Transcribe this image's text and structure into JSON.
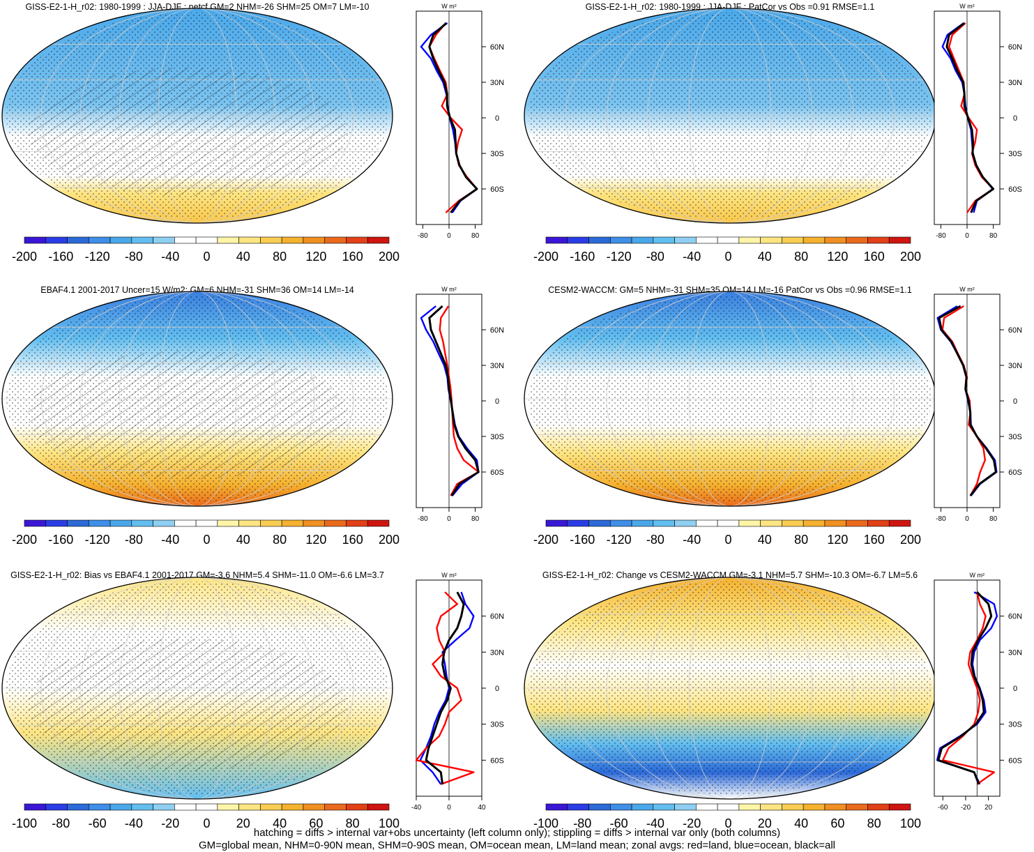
{
  "chart_data": [
    {
      "type": "heatmap",
      "title": "GISS-E2-1-H_r02: 1980-1999 : JJA-DJF : netcf GM=2 NHM=-26 SHM=25 OM=7 LM=-10",
      "colorbar_ticks": [
        "-200",
        "-160",
        "-120",
        "-80",
        "-40",
        "0",
        "40",
        "80",
        "120",
        "160",
        "200"
      ],
      "colorbar_range": [
        -200,
        200
      ],
      "hatching": true,
      "stippling": true,
      "zonal_units": "W m²",
      "zonal_xticks": [
        "-80",
        "0",
        "80"
      ],
      "zonal_xlim": [
        -100,
        100
      ],
      "zonal_lat_ticks": [
        "60N",
        "30N",
        "0",
        "30S",
        "60S"
      ],
      "zonal": {
        "lat": [
          80,
          70,
          60,
          50,
          40,
          30,
          20,
          10,
          0,
          -10,
          -20,
          -30,
          -40,
          -50,
          -60,
          -70,
          -80
        ],
        "land": [
          -10,
          -40,
          -60,
          -45,
          -28,
          -10,
          -5,
          -22,
          5,
          40,
          28,
          22,
          30,
          55,
          85,
          30,
          -10
        ],
        "ocean": [
          -5,
          -55,
          -85,
          -55,
          -38,
          -18,
          -8,
          -4,
          2,
          12,
          18,
          22,
          32,
          52,
          85,
          35,
          10
        ],
        "all": [
          -8,
          -48,
          -60,
          -48,
          -32,
          -14,
          -6,
          -6,
          3,
          18,
          20,
          22,
          32,
          52,
          85,
          33,
          5
        ]
      },
      "colors": [
        "#3a17d6",
        "#2a3de5",
        "#2c6ad8",
        "#3f8ee8",
        "#4aa8ea",
        "#63bef0",
        "#8ecff2",
        "#ffffff",
        "#ffffff",
        "#fff5a8",
        "#fde583",
        "#f9cd52",
        "#f5b12f",
        "#f08f22",
        "#ea6a1d",
        "#e24017",
        "#cf1510"
      ]
    },
    {
      "type": "heatmap",
      "title": "GISS-E2-1-H_r02: 1980-1999 : JJA-DJF : PatCor vs Obs =0.91 RMSE=1.1",
      "colorbar_ticks": [
        "-200",
        "-160",
        "-120",
        "-80",
        "-40",
        "0",
        "40",
        "80",
        "120",
        "160",
        "200"
      ],
      "colorbar_range": [
        -200,
        200
      ],
      "hatching": false,
      "stippling": true,
      "zonal_units": "W m²",
      "zonal_xticks": [
        "-80",
        "0",
        "80"
      ],
      "zonal_xlim": [
        -100,
        100
      ],
      "zonal_lat_ticks": [
        "60N",
        "30N",
        "0",
        "30S",
        "60S"
      ],
      "zonal": {
        "lat": [
          80,
          70,
          60,
          50,
          40,
          30,
          20,
          10,
          0,
          -10,
          -20,
          -30,
          -40,
          -50,
          -60,
          -70,
          -80
        ],
        "land": [
          -5,
          -45,
          -55,
          -40,
          -25,
          -10,
          -8,
          -18,
          5,
          30,
          25,
          15,
          25,
          45,
          80,
          25,
          0
        ],
        "ocean": [
          -10,
          -60,
          -75,
          -50,
          -35,
          -15,
          -8,
          -5,
          2,
          12,
          15,
          18,
          28,
          48,
          78,
          30,
          20
        ],
        "all": [
          -8,
          -55,
          -62,
          -45,
          -30,
          -12,
          -8,
          -8,
          3,
          15,
          18,
          17,
          28,
          48,
          80,
          28,
          12
        ]
      },
      "colors": [
        "#3a17d6",
        "#2a3de5",
        "#2c6ad8",
        "#3f8ee8",
        "#4aa8ea",
        "#63bef0",
        "#8ecff2",
        "#ffffff",
        "#ffffff",
        "#fff5a8",
        "#fde583",
        "#f9cd52",
        "#f5b12f",
        "#f08f22",
        "#ea6a1d",
        "#e24017",
        "#cf1510"
      ]
    },
    {
      "type": "heatmap",
      "title": "EBAF4.1 2001-2017 Uncer=15 W/m2: GM=6 NHM=-31 SHM=36 OM=14 LM=-14",
      "colorbar_ticks": [
        "-200",
        "-160",
        "-120",
        "-80",
        "-40",
        "0",
        "40",
        "80",
        "120",
        "160",
        "200"
      ],
      "colorbar_range": [
        -200,
        200
      ],
      "hatching": true,
      "stippling": true,
      "zonal_units": "W m²",
      "zonal_xticks": [
        "-80",
        "0",
        "80"
      ],
      "zonal_xlim": [
        -100,
        100
      ],
      "zonal_lat_ticks": [
        "60N",
        "30N",
        "0",
        "30S",
        "60S"
      ],
      "zonal": {
        "lat": [
          80,
          70,
          60,
          50,
          40,
          30,
          20,
          10,
          0,
          -10,
          -20,
          -30,
          -40,
          -50,
          -60,
          -70,
          -80
        ],
        "land": [
          -2,
          -25,
          -28,
          -18,
          -12,
          -5,
          0,
          5,
          8,
          10,
          12,
          15,
          25,
          45,
          90,
          25,
          5
        ],
        "ocean": [
          -40,
          -85,
          -70,
          -48,
          -32,
          -15,
          -5,
          -2,
          5,
          12,
          18,
          30,
          55,
          85,
          90,
          40,
          10
        ],
        "all": [
          -20,
          -60,
          -55,
          -40,
          -25,
          -10,
          -3,
          0,
          6,
          11,
          16,
          28,
          50,
          80,
          90,
          32,
          8
        ]
      },
      "colors": [
        "#3a17d6",
        "#2a3de5",
        "#2c6ad8",
        "#3f8ee8",
        "#4aa8ea",
        "#63bef0",
        "#8ecff2",
        "#ffffff",
        "#ffffff",
        "#fff5a8",
        "#fde583",
        "#f9cd52",
        "#f5b12f",
        "#f08f22",
        "#ea6a1d",
        "#e24017",
        "#cf1510"
      ]
    },
    {
      "type": "heatmap",
      "title": "CESM2-WACCM: GM=5 NHM=-31 SHM=35 OM=14 LM=-16 PatCor vs Obs =0.96 RMSE=1.1",
      "colorbar_ticks": [
        "-200",
        "-160",
        "-120",
        "-80",
        "-40",
        "0",
        "40",
        "80",
        "120",
        "160",
        "200"
      ],
      "colorbar_range": [
        -200,
        200
      ],
      "hatching": false,
      "stippling": true,
      "zonal_units": "W m²",
      "zonal_xticks": [
        "-80",
        "0",
        "80"
      ],
      "zonal_xlim": [
        -100,
        100
      ],
      "zonal_lat_ticks": [
        "60N",
        "30N",
        "0",
        "30S",
        "60S"
      ],
      "zonal": {
        "lat": [
          80,
          70,
          60,
          50,
          40,
          30,
          20,
          10,
          0,
          -10,
          -20,
          -30,
          -40,
          -50,
          -60,
          -70,
          -80
        ],
        "land": [
          -10,
          -70,
          -75,
          -45,
          -28,
          -10,
          0,
          -5,
          8,
          10,
          5,
          30,
          50,
          55,
          40,
          30,
          10
        ],
        "ocean": [
          -30,
          -90,
          -80,
          -50,
          -30,
          -12,
          -2,
          -5,
          3,
          10,
          12,
          30,
          60,
          85,
          90,
          40,
          12
        ],
        "all": [
          -20,
          -85,
          -78,
          -48,
          -30,
          -12,
          -2,
          -5,
          5,
          10,
          10,
          30,
          58,
          82,
          88,
          38,
          10
        ]
      },
      "colors": [
        "#3a17d6",
        "#2a3de5",
        "#2c6ad8",
        "#3f8ee8",
        "#4aa8ea",
        "#63bef0",
        "#8ecff2",
        "#ffffff",
        "#ffffff",
        "#fff5a8",
        "#fde583",
        "#f9cd52",
        "#f5b12f",
        "#f08f22",
        "#ea6a1d",
        "#e24017",
        "#cf1510"
      ]
    },
    {
      "type": "heatmap",
      "title": "GISS-E2-1-H_r02: Bias vs EBAF4.1 2001-2017 GM=-3.6 NHM=5.4 SHM=-11.0 OM=-6.6 LM=3.7",
      "colorbar_ticks": [
        "-100",
        "-80",
        "-60",
        "-40",
        "-20",
        "0",
        "20",
        "40",
        "60",
        "80",
        "100"
      ],
      "colorbar_range": [
        -100,
        100
      ],
      "hatching": true,
      "stippling": true,
      "zonal_units": "W m²",
      "zonal_xticks": [
        "-40",
        "0",
        "40"
      ],
      "zonal_xlim": [
        -40,
        40
      ],
      "zonal_lat_ticks": [
        "60N",
        "30N",
        "0",
        "30S",
        "60S"
      ],
      "zonal": {
        "lat": [
          80,
          70,
          60,
          50,
          40,
          30,
          20,
          10,
          0,
          -10,
          -20,
          -30,
          -40,
          -50,
          -60,
          -70,
          -80
        ],
        "land": [
          -5,
          10,
          -10,
          -15,
          -12,
          -5,
          -20,
          -10,
          10,
          15,
          0,
          -5,
          -12,
          -28,
          -40,
          30,
          -10
        ],
        "ocean": [
          15,
          20,
          30,
          25,
          8,
          -8,
          -5,
          -3,
          0,
          -4,
          -12,
          -18,
          -22,
          -28,
          -35,
          -20,
          -10
        ],
        "all": [
          10,
          18,
          15,
          10,
          0,
          -6,
          -8,
          -5,
          2,
          -2,
          -10,
          -15,
          -20,
          -25,
          -28,
          -10,
          -8
        ]
      },
      "colors": [
        "#3a17d6",
        "#2a3de5",
        "#2c6ad8",
        "#3f8ee8",
        "#4aa8ea",
        "#63bef0",
        "#8ecff2",
        "#ffffff",
        "#ffffff",
        "#fff5a8",
        "#fde583",
        "#f9cd52",
        "#f5b12f",
        "#f08f22",
        "#ea6a1d",
        "#e24017",
        "#cf1510"
      ]
    },
    {
      "type": "heatmap",
      "title": "GISS-E2-1-H_r02: Change vs CESM2-WACCM GM=-3.1 NHM=5.7 SHM=-10.3 OM=-6.7 LM=5.6",
      "colorbar_ticks": [
        "-100",
        "-80",
        "-60",
        "-40",
        "-20",
        "0",
        "20",
        "40",
        "60",
        "80",
        "100"
      ],
      "colorbar_range": [
        -100,
        100
      ],
      "hatching": false,
      "stippling": true,
      "zonal_units": "W m²",
      "zonal_xticks": [
        "-60",
        "-20",
        "20"
      ],
      "zonal_xlim": [
        -75,
        40
      ],
      "zonal_lat_ticks": [
        "60N",
        "30N",
        "0",
        "30S",
        "60S"
      ],
      "zonal": {
        "lat": [
          80,
          70,
          60,
          50,
          40,
          30,
          20,
          10,
          0,
          -10,
          -20,
          -30,
          -40,
          -50,
          -60,
          -70,
          -80
        ],
        "land": [
          0,
          5,
          15,
          10,
          0,
          -12,
          -15,
          -8,
          0,
          5,
          2,
          -5,
          -25,
          -50,
          -60,
          30,
          0
        ],
        "ocean": [
          -5,
          30,
          35,
          25,
          5,
          -5,
          -8,
          -4,
          5,
          12,
          15,
          0,
          -30,
          -65,
          -70,
          -5,
          5
        ],
        "all": [
          0,
          20,
          25,
          15,
          2,
          -8,
          -10,
          -5,
          4,
          10,
          12,
          -2,
          -28,
          -62,
          -68,
          -5,
          3
        ]
      },
      "colors": [
        "#3a17d6",
        "#2a3de5",
        "#2c6ad8",
        "#3f8ee8",
        "#4aa8ea",
        "#63bef0",
        "#8ecff2",
        "#ffffff",
        "#ffffff",
        "#fff5a8",
        "#fde583",
        "#f9cd52",
        "#f5b12f",
        "#f08f22",
        "#ea6a1d",
        "#e24017",
        "#cf1510"
      ]
    }
  ],
  "zonal_line_colors": {
    "land": "#ff0000",
    "ocean": "#0000ff",
    "all": "#000000"
  },
  "footer": {
    "line1": "hatching = diffs > internal var+obs uncertainty (left column only); stippling = diffs > internal var only (both columns)",
    "line2": "GM=global mean, NHM=0-90N mean, SHM=0-90S mean, OM=ocean mean, LM=land mean; zonal avgs: red=land, blue=ocean, black=all"
  }
}
